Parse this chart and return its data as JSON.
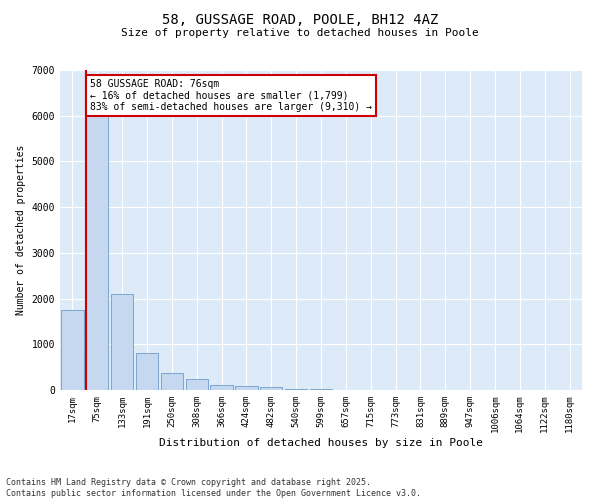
{
  "title1": "58, GUSSAGE ROAD, POOLE, BH12 4AZ",
  "title2": "Size of property relative to detached houses in Poole",
  "xlabel": "Distribution of detached houses by size in Poole",
  "ylabel": "Number of detached properties",
  "categories": [
    "17sqm",
    "75sqm",
    "133sqm",
    "191sqm",
    "250sqm",
    "308sqm",
    "366sqm",
    "424sqm",
    "482sqm",
    "540sqm",
    "599sqm",
    "657sqm",
    "715sqm",
    "773sqm",
    "831sqm",
    "889sqm",
    "947sqm",
    "1006sqm",
    "1064sqm",
    "1122sqm",
    "1180sqm"
  ],
  "values": [
    1750,
    6350,
    2100,
    820,
    370,
    230,
    120,
    90,
    60,
    30,
    15,
    8,
    4,
    2,
    1,
    0,
    0,
    0,
    0,
    0,
    0
  ],
  "bar_color": "#c5d8f0",
  "bar_edge_color": "#5a8fc2",
  "vline_x_index": 1,
  "vline_color": "#cc0000",
  "annotation_text": "58 GUSSAGE ROAD: 76sqm\n← 16% of detached houses are smaller (1,799)\n83% of semi-detached houses are larger (9,310) →",
  "annotation_box_color": "#cc0000",
  "ylim": [
    0,
    7000
  ],
  "yticks": [
    0,
    1000,
    2000,
    3000,
    4000,
    5000,
    6000,
    7000
  ],
  "grid_color": "#d0dce8",
  "background_color": "#ddeaf8",
  "footer_line1": "Contains HM Land Registry data © Crown copyright and database right 2025.",
  "footer_line2": "Contains public sector information licensed under the Open Government Licence v3.0."
}
